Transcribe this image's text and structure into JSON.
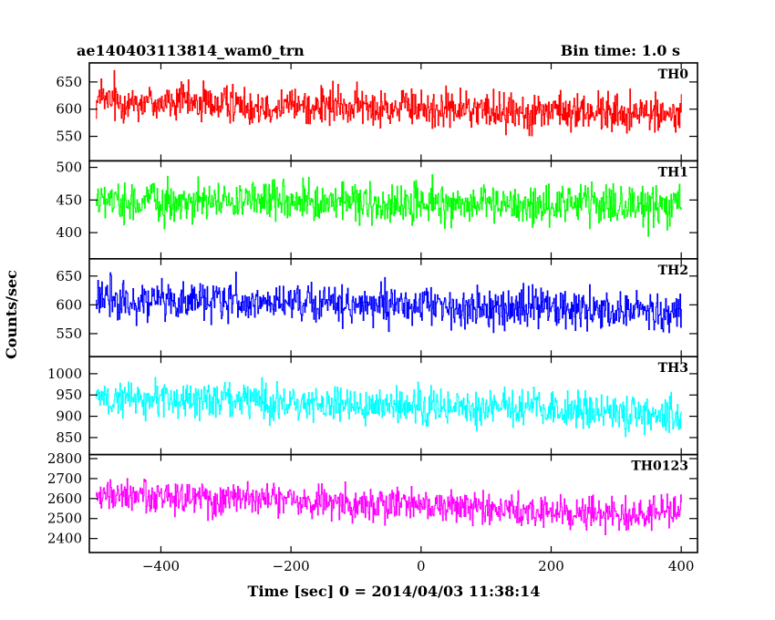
{
  "header": {
    "title": "ae140403113814_wam0_trn",
    "bin_time": "Bin time: 1.0 s"
  },
  "chart_data": {
    "type": "line",
    "title": "ae140403113814_wam0_trn",
    "bin_time": "Bin time: 1.0 s",
    "xlabel": "Time [sec] 0 = 2014/04/03 11:38:14",
    "ylabel": "Counts/sec",
    "xlim": [
      -510,
      425
    ],
    "x_range": [
      -500,
      400
    ],
    "x_ticks": [
      -400,
      -200,
      0,
      200,
      400
    ],
    "x_tick_labels": [
      "−400",
      "−200",
      "0",
      "200",
      "400"
    ],
    "panels": [
      {
        "name": "TH0",
        "color": "#ff0000",
        "ylim": [
          505,
          685
        ],
        "y_ticks": [
          550,
          600,
          650
        ],
        "y_tick_labels": [
          "550",
          "600",
          "650"
        ],
        "mean_start": 615,
        "mean_end": 590,
        "noise": 28
      },
      {
        "name": "TH1",
        "color": "#00ff00",
        "ylim": [
          360,
          510
        ],
        "y_ticks": [
          400,
          450,
          500
        ],
        "y_tick_labels": [
          "400",
          "450",
          "500"
        ],
        "mean_start": 448,
        "mean_end": 440,
        "noise": 24
      },
      {
        "name": "TH2",
        "color": "#0000ff",
        "ylim": [
          510,
          680
        ],
        "y_ticks": [
          550,
          600,
          650
        ],
        "y_tick_labels": [
          "550",
          "600",
          "650"
        ],
        "mean_start": 608,
        "mean_end": 590,
        "noise": 27
      },
      {
        "name": "TH3",
        "color": "#00ffff",
        "ylim": [
          810,
          1040
        ],
        "y_ticks": [
          850,
          900,
          950,
          1000
        ],
        "y_tick_labels": [
          "850",
          "900",
          "950",
          "1000"
        ],
        "mean_start": 945,
        "mean_end": 905,
        "noise": 34
      },
      {
        "name": "TH0123",
        "color": "#ff00ff",
        "ylim": [
          2330,
          2820
        ],
        "y_ticks": [
          2400,
          2500,
          2600,
          2700,
          2800
        ],
        "y_tick_labels": [
          "2400",
          "2500",
          "2600",
          "2700",
          "2800"
        ],
        "mean_start": 2620,
        "mean_end": 2515,
        "noise": 65
      }
    ]
  }
}
